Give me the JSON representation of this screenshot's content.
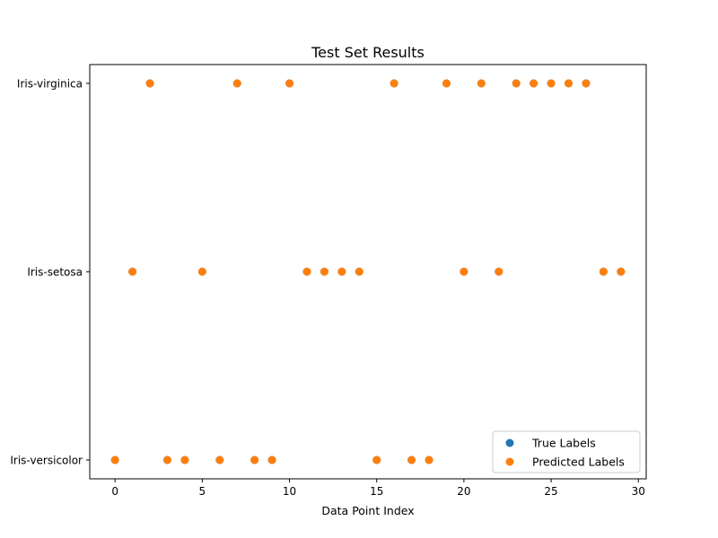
{
  "chart_data": {
    "type": "scatter",
    "title": "Test Set Results",
    "xlabel": "Data Point Index",
    "ylabel": "",
    "xlim": [
      -1.45,
      30.45
    ],
    "xticks": [
      0,
      5,
      10,
      15,
      20,
      25,
      30
    ],
    "categories": [
      "Iris-versicolor",
      "Iris-setosa",
      "Iris-virginica"
    ],
    "grid": false,
    "legend_position": "lower-right",
    "x": [
      0,
      1,
      2,
      3,
      4,
      5,
      6,
      7,
      8,
      9,
      10,
      11,
      12,
      13,
      14,
      15,
      16,
      17,
      18,
      19,
      20,
      21,
      22,
      23,
      24,
      25,
      26,
      27,
      28,
      29
    ],
    "series": [
      {
        "name": "True Labels",
        "color": "#1f77b4",
        "values": [
          "Iris-versicolor",
          "Iris-setosa",
          "Iris-virginica",
          "Iris-versicolor",
          "Iris-versicolor",
          "Iris-setosa",
          "Iris-versicolor",
          "Iris-virginica",
          "Iris-versicolor",
          "Iris-versicolor",
          "Iris-virginica",
          "Iris-setosa",
          "Iris-setosa",
          "Iris-setosa",
          "Iris-setosa",
          "Iris-versicolor",
          "Iris-virginica",
          "Iris-versicolor",
          "Iris-versicolor",
          "Iris-virginica",
          "Iris-setosa",
          "Iris-virginica",
          "Iris-setosa",
          "Iris-virginica",
          "Iris-virginica",
          "Iris-virginica",
          "Iris-virginica",
          "Iris-virginica",
          "Iris-setosa",
          "Iris-setosa"
        ]
      },
      {
        "name": "Predicted Labels",
        "color": "#ff7f0e",
        "values": [
          "Iris-versicolor",
          "Iris-setosa",
          "Iris-virginica",
          "Iris-versicolor",
          "Iris-versicolor",
          "Iris-setosa",
          "Iris-versicolor",
          "Iris-virginica",
          "Iris-versicolor",
          "Iris-versicolor",
          "Iris-virginica",
          "Iris-setosa",
          "Iris-setosa",
          "Iris-setosa",
          "Iris-setosa",
          "Iris-versicolor",
          "Iris-virginica",
          "Iris-versicolor",
          "Iris-versicolor",
          "Iris-virginica",
          "Iris-setosa",
          "Iris-virginica",
          "Iris-setosa",
          "Iris-virginica",
          "Iris-virginica",
          "Iris-virginica",
          "Iris-virginica",
          "Iris-virginica",
          "Iris-setosa",
          "Iris-setosa"
        ]
      }
    ]
  }
}
